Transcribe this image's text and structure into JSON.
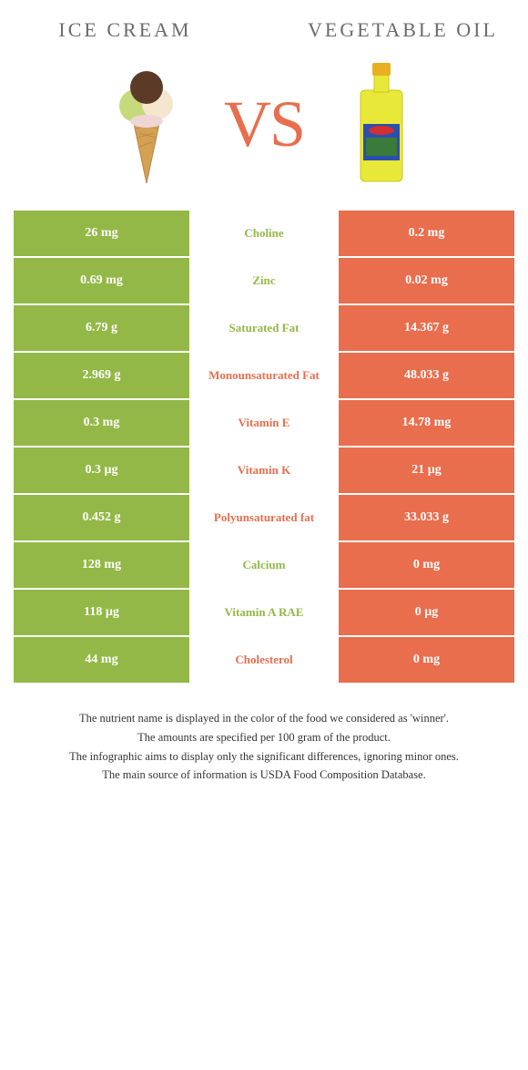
{
  "colors": {
    "left": "#93b847",
    "right": "#e86e4e",
    "vs": "#e86e4e",
    "title": "#6b6b6b"
  },
  "titles": {
    "left": "ICE CREAM",
    "right": "VEGETABLE OIL"
  },
  "vs_label": "VS",
  "rows": [
    {
      "left": "26 mg",
      "mid": "Choline",
      "right": "0.2 mg",
      "winner": "left"
    },
    {
      "left": "0.69 mg",
      "mid": "Zinc",
      "right": "0.02 mg",
      "winner": "left"
    },
    {
      "left": "6.79 g",
      "mid": "Saturated Fat",
      "right": "14.367 g",
      "winner": "left"
    },
    {
      "left": "2.969 g",
      "mid": "Monounsaturated Fat",
      "right": "48.033 g",
      "winner": "right"
    },
    {
      "left": "0.3 mg",
      "mid": "Vitamin E",
      "right": "14.78 mg",
      "winner": "right"
    },
    {
      "left": "0.3 µg",
      "mid": "Vitamin K",
      "right": "21 µg",
      "winner": "right"
    },
    {
      "left": "0.452 g",
      "mid": "Polyunsaturated fat",
      "right": "33.033 g",
      "winner": "right"
    },
    {
      "left": "128 mg",
      "mid": "Calcium",
      "right": "0 mg",
      "winner": "left"
    },
    {
      "left": "118 µg",
      "mid": "Vitamin A RAE",
      "right": "0 µg",
      "winner": "left"
    },
    {
      "left": "44 mg",
      "mid": "Cholesterol",
      "right": "0 mg",
      "winner": "right"
    }
  ],
  "notes": [
    "The nutrient name is displayed in the color of the food we considered as 'winner'.",
    "The amounts are specified per 100 gram of the product.",
    "The infographic aims to display only the significant differences, ignoring minor ones.",
    "The main source of information is USDA Food Composition Database."
  ]
}
